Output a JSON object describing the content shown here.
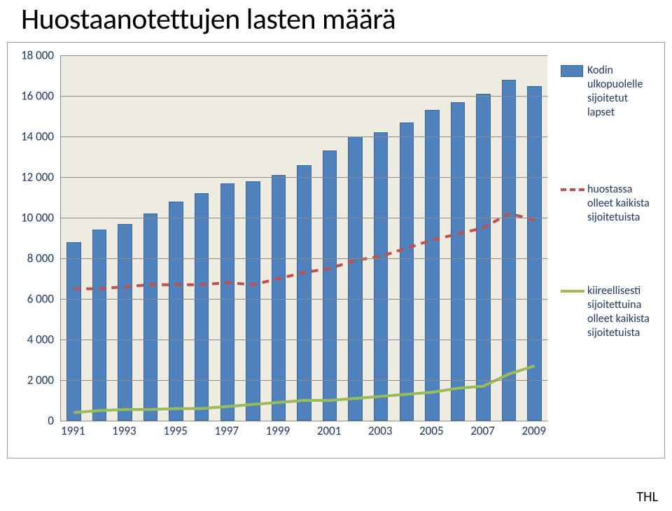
{
  "title": "Huostaanotettujen lasten määrä",
  "source": "THL",
  "chart": {
    "type": "bar+line",
    "background_color": "#eeece1",
    "grid_color": "#8a8a8a",
    "ylim": [
      0,
      18000
    ],
    "ytick_step": 2000,
    "ytick_labels": [
      "0",
      "2 000",
      "4 000",
      "6 000",
      "8 000",
      "10 000",
      "12 000",
      "14 000",
      "16 000",
      "18 000"
    ],
    "xtick_labels": [
      "1991",
      "1993",
      "1995",
      "1997",
      "1999",
      "2001",
      "2003",
      "2005",
      "2007",
      "2009"
    ],
    "label_color": "#1f3660",
    "label_fontsize": 17,
    "n_bars": 19,
    "bars": {
      "color": "#4f81bd",
      "border_color": "#3d6494",
      "bar_width_ratio": 0.56,
      "values": [
        8800,
        9400,
        9700,
        10200,
        10800,
        11200,
        11700,
        11800,
        12100,
        12600,
        13300,
        14000,
        14200,
        14700,
        15300,
        15700,
        16100,
        16800,
        16500
      ]
    },
    "line_huostassa": {
      "color": "#c0504d",
      "width": 4,
      "dash": "10,8",
      "values": [
        6500,
        6500,
        6600,
        6700,
        6700,
        6700,
        6800,
        6700,
        7000,
        7300,
        7500,
        7900,
        8100,
        8500,
        8900,
        9200,
        9500,
        10200,
        9900
      ]
    },
    "line_kiireellisesti": {
      "color": "#9bbb59",
      "width": 4,
      "values": [
        400,
        500,
        550,
        550,
        600,
        600,
        700,
        800,
        900,
        1000,
        1000,
        1100,
        1200,
        1300,
        1400,
        1600,
        1700,
        2300,
        2700
      ]
    }
  },
  "legend": {
    "bars": "Kodin ulkopuolelle sijoitetut lapset",
    "huostassa": "huostassa olleet kaikista sijoitetuista",
    "kiireellisesti": "kiireellisesti sijoitettuina olleet kaikista sijoitetuista"
  }
}
